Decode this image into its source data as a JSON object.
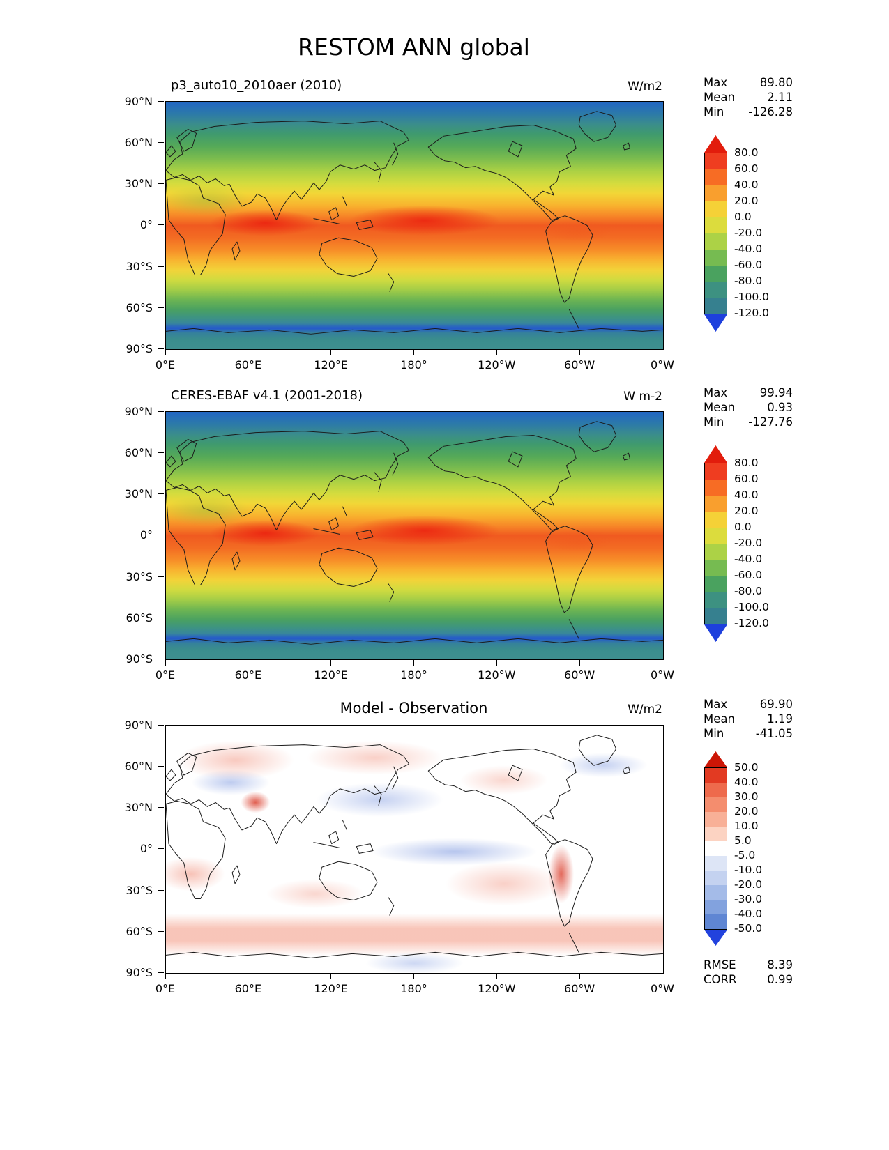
{
  "title": "RESTOM ANN global",
  "axes": {
    "y_ticks": [
      "90°N",
      "60°N",
      "30°N",
      "0°",
      "30°S",
      "60°S",
      "90°S"
    ],
    "x_ticks": [
      "0°E",
      "60°E",
      "120°E",
      "180°",
      "120°W",
      "60°W",
      "0°W"
    ]
  },
  "stat_labels": {
    "max": "Max",
    "mean": "Mean",
    "min": "Min",
    "rmse": "RMSE",
    "corr": "CORR"
  },
  "panels": [
    {
      "title": "p3_auto10_2010aer (2010)",
      "units": "W/m2",
      "stats": {
        "max": "89.80",
        "mean": "2.11",
        "min": "-126.28"
      },
      "colorbar": {
        "ticks": [
          "80.0",
          "60.0",
          "40.0",
          "20.0",
          "0.0",
          "-20.0",
          "-40.0",
          "-60.0",
          "-80.0",
          "-100.0",
          "-120.0"
        ],
        "above_color": "#e21c0c",
        "segment_colors": [
          "#ef3d20",
          "#f76c24",
          "#f99f2e",
          "#f5d137",
          "#dcdc3d",
          "#acd246",
          "#76bb51",
          "#4aa25f",
          "#3d9181",
          "#36808f"
        ],
        "below_color": "#1e40dd"
      }
    },
    {
      "title": "CERES-EBAF v4.1 (2001-2018)",
      "units": "W m-2",
      "stats": {
        "max": "99.94",
        "mean": "0.93",
        "min": "-127.76"
      },
      "colorbar": {
        "ticks": [
          "80.0",
          "60.0",
          "40.0",
          "20.0",
          "0.0",
          "-20.0",
          "-40.0",
          "-60.0",
          "-80.0",
          "-100.0",
          "-120.0"
        ],
        "above_color": "#e21c0c",
        "segment_colors": [
          "#ef3d20",
          "#f76c24",
          "#f99f2e",
          "#f5d137",
          "#dcdc3d",
          "#acd246",
          "#76bb51",
          "#4aa25f",
          "#3d9181",
          "#36808f"
        ],
        "below_color": "#1e40dd"
      }
    },
    {
      "title": "Model - Observation",
      "units": "W/m2",
      "stats": {
        "max": "69.90",
        "mean": "1.19",
        "min": "-41.05"
      },
      "metrics": {
        "rmse": "8.39",
        "corr": "0.99"
      },
      "colorbar": {
        "ticks": [
          "50.0",
          "40.0",
          "30.0",
          "20.0",
          "10.0",
          "5.0",
          "-5.0",
          "-10.0",
          "-20.0",
          "-30.0",
          "-40.0",
          "-50.0"
        ],
        "above_color": "#cc1606",
        "segment_colors": [
          "#e23a22",
          "#ee6a4c",
          "#f48d6e",
          "#f8b097",
          "#fcd3c2",
          "#ffffff",
          "#dde5f6",
          "#c4d2f0",
          "#a4bbe8",
          "#82a2de",
          "#5f86d3"
        ],
        "below_color": "#2242dd"
      }
    }
  ],
  "chart_data": [
    {
      "type": "heatmap",
      "subtype": "global-latlon-contour-map",
      "title": "p3_auto10_2010aer (2010)",
      "figure_title": "RESTOM ANN global",
      "units": "W/m2",
      "lon_range": [
        0,
        360
      ],
      "lat_range": [
        -90,
        90
      ],
      "x_ticks": [
        "0°E",
        "60°E",
        "120°E",
        "180°",
        "120°W",
        "60°W",
        "0°W"
      ],
      "y_ticks": [
        "90°N",
        "60°N",
        "30°N",
        "0°",
        "30°S",
        "60°S",
        "90°S"
      ],
      "colorbar_levels": [
        80,
        60,
        40,
        20,
        0,
        -20,
        -40,
        -60,
        -80,
        -100,
        -120
      ],
      "stats": {
        "max": 89.8,
        "mean": 2.11,
        "min": -126.28
      },
      "zonal_mean_estimate": {
        "lat": [
          90,
          75,
          60,
          45,
          30,
          15,
          0,
          -15,
          -30,
          -45,
          -60,
          -75,
          -90
        ],
        "value": [
          -110,
          -90,
          -55,
          -15,
          25,
          60,
          78,
          62,
          28,
          -18,
          -65,
          -95,
          -100
        ]
      }
    },
    {
      "type": "heatmap",
      "subtype": "global-latlon-contour-map",
      "title": "CERES-EBAF v4.1 (2001-2018)",
      "units": "W m-2",
      "lon_range": [
        0,
        360
      ],
      "lat_range": [
        -90,
        90
      ],
      "colorbar_levels": [
        80,
        60,
        40,
        20,
        0,
        -20,
        -40,
        -60,
        -80,
        -100,
        -120
      ],
      "stats": {
        "max": 99.94,
        "mean": 0.93,
        "min": -127.76
      },
      "zonal_mean_estimate": {
        "lat": [
          90,
          75,
          60,
          45,
          30,
          15,
          0,
          -15,
          -30,
          -45,
          -60,
          -75,
          -90
        ],
        "value": [
          -112,
          -92,
          -55,
          -12,
          28,
          62,
          80,
          65,
          30,
          -15,
          -62,
          -95,
          -102
        ]
      }
    },
    {
      "type": "heatmap",
      "subtype": "global-latlon-contour-map-difference",
      "title": "Model - Observation",
      "units": "W/m2",
      "lon_range": [
        0,
        360
      ],
      "lat_range": [
        -90,
        90
      ],
      "colorbar_levels": [
        50,
        40,
        30,
        20,
        10,
        5,
        -5,
        -10,
        -20,
        -30,
        -40,
        -50
      ],
      "stats": {
        "max": 69.9,
        "mean": 1.19,
        "min": -41.05,
        "rmse": 8.39,
        "corr": 0.99
      },
      "zonal_mean_estimate": {
        "lat": [
          90,
          75,
          60,
          45,
          30,
          15,
          0,
          -15,
          -30,
          -45,
          -60,
          -75,
          -90
        ],
        "value": [
          2,
          5,
          4,
          2,
          0,
          -2,
          -3,
          2,
          3,
          2,
          8,
          6,
          0
        ]
      }
    }
  ]
}
